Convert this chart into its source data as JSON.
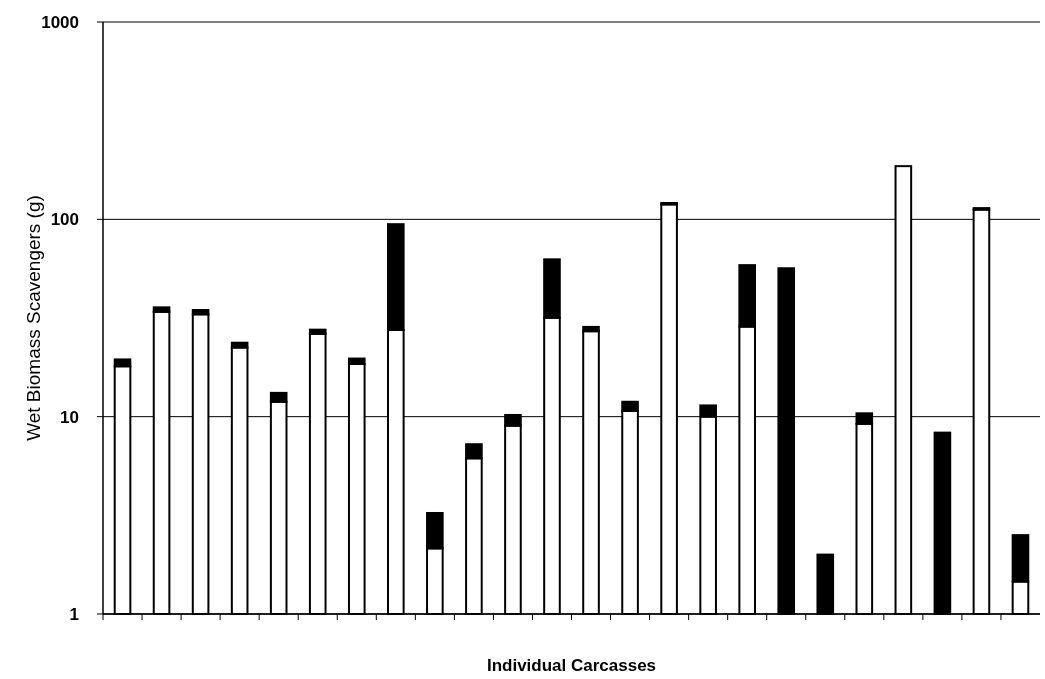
{
  "chart_data": {
    "type": "bar",
    "stacked": true,
    "log": true,
    "xlabel": "Individual Carcasses",
    "ylabel": "Wet Biomass Scavengers (g)",
    "categories": [
      null,
      null,
      null,
      null,
      null,
      null,
      null,
      null,
      null,
      null,
      null,
      null,
      null,
      null,
      null,
      null,
      null,
      null,
      null,
      null,
      null,
      null,
      null,
      null
    ],
    "series": [
      {
        "color": "#ffffff",
        "values": [
          18,
          34,
          33,
          22.4,
          11.9,
          26.3,
          18.5,
          27.5,
          2.15,
          6.15,
          9,
          31.7,
          27.1,
          10.7,
          119,
          10,
          28.6,
          null,
          null,
          9.2,
          186,
          null,
          112,
          1.46
        ]
      },
      {
        "color": "#000000",
        "values": [
          1.5,
          1.8,
          1.7,
          1.3,
          1.3,
          1.3,
          1.2,
          67,
          1.1,
          1.1,
          1.2,
          31,
          1.4,
          1.2,
          2,
          1.4,
          30,
          56.5,
          2,
          1.2,
          null,
          8.3,
          2,
          1.05
        ]
      }
    ],
    "ylim": [
      1,
      1000
    ],
    "yticks": [
      1,
      10,
      100,
      1000
    ],
    "grid": "y"
  }
}
